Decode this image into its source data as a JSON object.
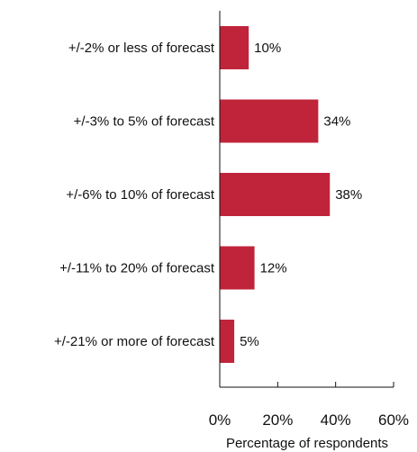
{
  "chart_data": {
    "type": "bar",
    "orientation": "horizontal",
    "categories": [
      "+/-2% or less of forecast",
      "+/-3% to 5% of forecast",
      "+/-6% to 10% of forecast",
      "+/-11% to 20% of forecast",
      "+/-21% or more of forecast"
    ],
    "values": [
      10,
      34,
      38,
      12,
      5
    ],
    "value_labels": [
      "10%",
      "34%",
      "38%",
      "12%",
      "5%"
    ],
    "title": "",
    "xlabel": "Percentage of respondents",
    "ylabel": "",
    "xlim": [
      0,
      60
    ],
    "xticks": [
      0,
      20,
      40,
      60
    ],
    "xtick_labels": [
      "0%",
      "20%",
      "40%",
      "60%"
    ],
    "grid": false,
    "bar_color": "#c0243a"
  }
}
